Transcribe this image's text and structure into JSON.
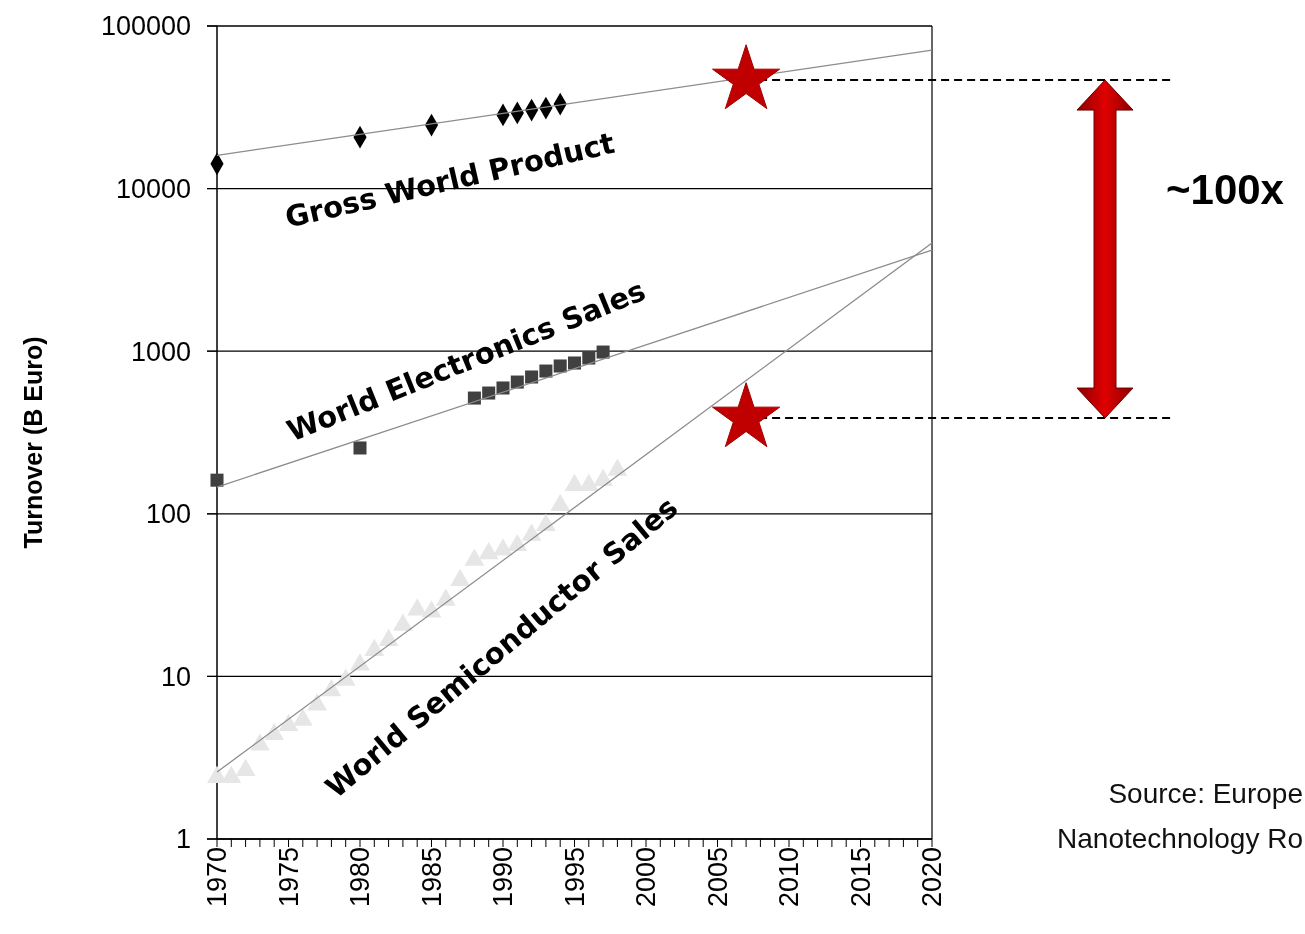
{
  "chart_data": {
    "type": "scatter",
    "ylabel": "Turnover (B Euro)",
    "log": "y",
    "grid": "y",
    "xlim": [
      1970,
      2020
    ],
    "xticks": [
      1970,
      {
        "value": 1971,
        "label": null
      },
      {
        "value": 1972,
        "label": null
      },
      {
        "value": 1973,
        "label": null
      },
      {
        "value": 1974,
        "label": null
      },
      1975,
      {
        "value": 1976,
        "label": null
      },
      {
        "value": 1977,
        "label": null
      },
      {
        "value": 1978,
        "label": null
      },
      {
        "value": 1979,
        "label": null
      },
      1980,
      {
        "value": 1981,
        "label": null
      },
      {
        "value": 1982,
        "label": null
      },
      {
        "value": 1983,
        "label": null
      },
      {
        "value": 1984,
        "label": null
      },
      1985,
      {
        "value": 1986,
        "label": null
      },
      {
        "value": 1987,
        "label": null
      },
      {
        "value": 1988,
        "label": null
      },
      {
        "value": 1989,
        "label": null
      },
      1990,
      {
        "value": 1991,
        "label": null
      },
      {
        "value": 1992,
        "label": null
      },
      {
        "value": 1993,
        "label": null
      },
      {
        "value": 1994,
        "label": null
      },
      1995,
      {
        "value": 1996,
        "label": null
      },
      {
        "value": 1997,
        "label": null
      },
      {
        "value": 1998,
        "label": null
      },
      {
        "value": 1999,
        "label": null
      },
      2000,
      {
        "value": 2001,
        "label": null
      },
      {
        "value": 2002,
        "label": null
      },
      {
        "value": 2003,
        "label": null
      },
      {
        "value": 2004,
        "label": null
      },
      2005,
      {
        "value": 2006,
        "label": null
      },
      {
        "value": 2007,
        "label": null
      },
      {
        "value": 2008,
        "label": null
      },
      {
        "value": 2009,
        "label": null
      },
      2010,
      {
        "value": 2011,
        "label": null
      },
      {
        "value": 2012,
        "label": null
      },
      {
        "value": 2013,
        "label": null
      },
      {
        "value": 2014,
        "label": null
      },
      2015,
      {
        "value": 2016,
        "label": null
      },
      {
        "value": 2017,
        "label": null
      },
      {
        "value": 2018,
        "label": null
      },
      {
        "value": 2019,
        "label": null
      },
      2020
    ],
    "ylim": [
      1,
      100000
    ],
    "yticks": [
      1,
      10,
      100,
      1000,
      10000,
      100000
    ],
    "series": [
      {
        "name": "Gross World Product",
        "marker": "diamond",
        "color": "#000000",
        "x": [
          1970,
          1980,
          1985,
          1990,
          1991,
          1992,
          1993,
          1994
        ],
        "values": [
          14200,
          20700,
          24600,
          28400,
          29200,
          30400,
          31300,
          33100
        ]
      },
      {
        "type": "line",
        "color": "#8c8c8c",
        "x": [
          1970,
          2020
        ],
        "values": [
          16000,
          71000
        ]
      },
      {
        "name": "World Electronics Sales",
        "marker": "square",
        "color": "#404040",
        "x": [
          1970,
          1980,
          1988,
          1989,
          1990,
          1991,
          1992,
          1993,
          1994,
          1995,
          1996,
          1997
        ],
        "values": [
          161,
          254,
          515,
          553,
          594,
          646,
          694,
          755,
          811,
          846,
          908,
          988
        ]
      },
      {
        "type": "line",
        "color": "#8c8c8c",
        "x": [
          1970,
          2020
        ],
        "values": [
          146,
          4190
        ]
      },
      {
        "name": "World Semiconductor Sales",
        "marker": "triangle",
        "color": "#e6e6e6",
        "x": [
          1970,
          1971,
          1972,
          1973,
          1974,
          1975,
          1976,
          1977,
          1978,
          1979,
          1980,
          1981,
          1982,
          1983,
          1984,
          1985,
          1986,
          1987,
          1988,
          1989,
          1990,
          1991,
          1992,
          1993,
          1994,
          1995,
          1996,
          1997,
          1998
        ],
        "values": [
          2.4,
          2.4,
          2.65,
          3.8,
          4.4,
          5.0,
          5.4,
          6.7,
          8.2,
          9.5,
          11.8,
          14.5,
          16.7,
          20.7,
          25.7,
          25,
          29.5,
          39,
          52,
          57,
          60,
          64,
          74,
          85,
          113,
          150,
          150,
          161,
          186
        ]
      },
      {
        "type": "line",
        "color": "#8c8c8c",
        "x": [
          1970,
          2020
        ],
        "values": [
          2.58,
          4630
        ]
      },
      {
        "marker": "star",
        "color": "#c00000",
        "x": [
          2007,
          2007
        ],
        "values": [
          46500,
          388
        ]
      }
    ],
    "ref_lines": [
      {
        "axis": "y",
        "value": 46500,
        "label": null,
        "color": "#000000",
        "line_style": "dashed"
      },
      {
        "axis": "y",
        "value": 388,
        "label": null,
        "color": "#000000",
        "line_style": "dashed"
      }
    ],
    "annotations": [
      "~100x",
      "Source: Europe",
      "Nanotechnology Ro"
    ]
  }
}
